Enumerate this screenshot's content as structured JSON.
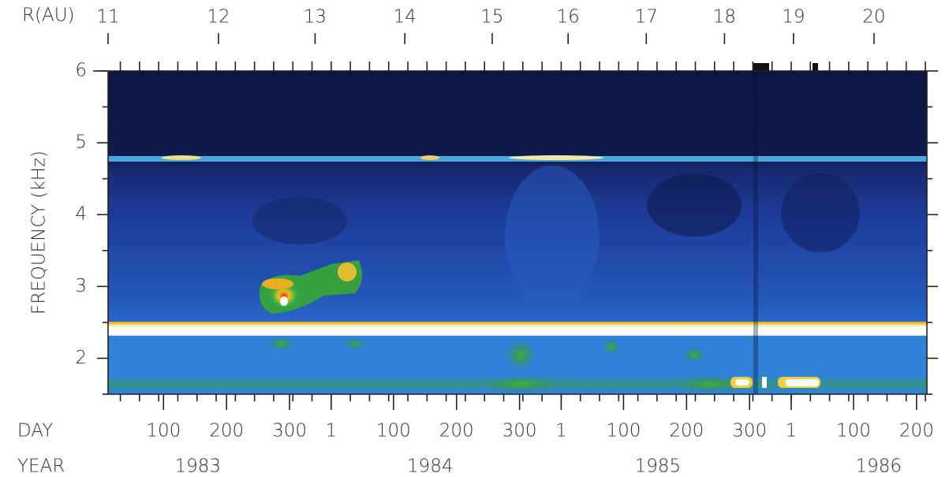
{
  "chart_data": {
    "type": "spectrogram",
    "ylabel": "FREQUENCY (kHz)",
    "ylim": [
      1.5,
      6
    ],
    "yticks": [
      2,
      3,
      4,
      5,
      6
    ],
    "xlim": [
      1983.03,
      1986.59
    ],
    "x_label": "DAY",
    "xticks": [
      {
        "value": 1983.271,
        "label": "100"
      },
      {
        "value": 1983.545,
        "label": "200"
      },
      {
        "value": 1983.819,
        "label": "300"
      },
      {
        "value": 1984.0,
        "label": "1"
      },
      {
        "value": 1984.271,
        "label": "100"
      },
      {
        "value": 1984.545,
        "label": "200"
      },
      {
        "value": 1984.819,
        "label": "300"
      },
      {
        "value": 1985.0,
        "label": "1"
      },
      {
        "value": 1985.271,
        "label": "100"
      },
      {
        "value": 1985.545,
        "label": "200"
      },
      {
        "value": 1985.819,
        "label": "300"
      },
      {
        "value": 1986.0,
        "label": "1"
      },
      {
        "value": 1986.271,
        "label": "100"
      },
      {
        "value": 1986.545,
        "label": "200"
      }
    ],
    "year_label": "YEAR",
    "year_ticks": [
      {
        "value": 1983.42,
        "label": "1983"
      },
      {
        "value": 1984.43,
        "label": "1984"
      },
      {
        "value": 1985.42,
        "label": "1985"
      },
      {
        "value": 1986.38,
        "label": "1986"
      }
    ],
    "x2_label": "R(AU)",
    "x2ticks": [
      {
        "value": 1983.03,
        "label": "11"
      },
      {
        "value": 1983.51,
        "label": "12"
      },
      {
        "value": 1983.93,
        "label": "13"
      },
      {
        "value": 1984.32,
        "label": "14"
      },
      {
        "value": 1984.7,
        "label": "15"
      },
      {
        "value": 1985.03,
        "label": "16"
      },
      {
        "value": 1985.37,
        "label": "17"
      },
      {
        "value": 1985.71,
        "label": "18"
      },
      {
        "value": 1986.01,
        "label": "19"
      },
      {
        "value": 1986.36,
        "label": "20"
      }
    ]
  }
}
